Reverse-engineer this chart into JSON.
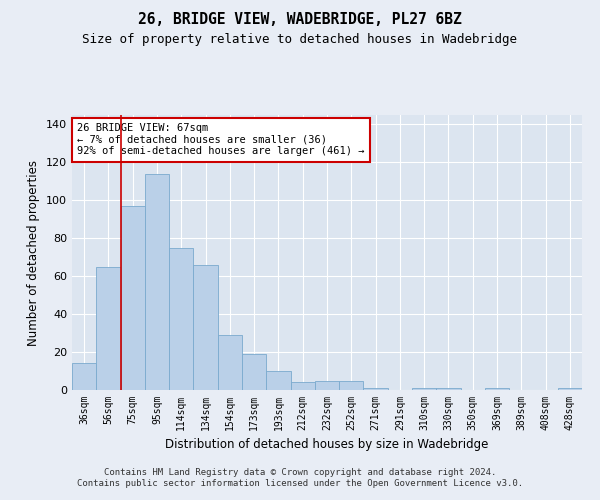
{
  "title": "26, BRIDGE VIEW, WADEBRIDGE, PL27 6BZ",
  "subtitle": "Size of property relative to detached houses in Wadebridge",
  "xlabel": "Distribution of detached houses by size in Wadebridge",
  "ylabel": "Number of detached properties",
  "categories": [
    "36sqm",
    "56sqm",
    "75sqm",
    "95sqm",
    "114sqm",
    "134sqm",
    "154sqm",
    "173sqm",
    "193sqm",
    "212sqm",
    "232sqm",
    "252sqm",
    "271sqm",
    "291sqm",
    "310sqm",
    "330sqm",
    "350sqm",
    "369sqm",
    "389sqm",
    "408sqm",
    "428sqm"
  ],
  "values": [
    14,
    65,
    97,
    114,
    75,
    66,
    29,
    19,
    10,
    4,
    5,
    5,
    1,
    0,
    1,
    1,
    0,
    1,
    0,
    0,
    1
  ],
  "bar_color": "#bad0e8",
  "bar_edge_color": "#7aaace",
  "fig_bg_color": "#e8edf5",
  "ax_bg_color": "#dce5f0",
  "grid_color": "#ffffff",
  "vline_color": "#cc0000",
  "vline_x": 1.5,
  "annotation_text": "26 BRIDGE VIEW: 67sqm\n← 7% of detached houses are smaller (36)\n92% of semi-detached houses are larger (461) →",
  "annotation_box_edgecolor": "#cc0000",
  "ylim": [
    0,
    145
  ],
  "yticks": [
    0,
    20,
    40,
    60,
    80,
    100,
    120,
    140
  ],
  "footer": "Contains HM Land Registry data © Crown copyright and database right 2024.\nContains public sector information licensed under the Open Government Licence v3.0."
}
